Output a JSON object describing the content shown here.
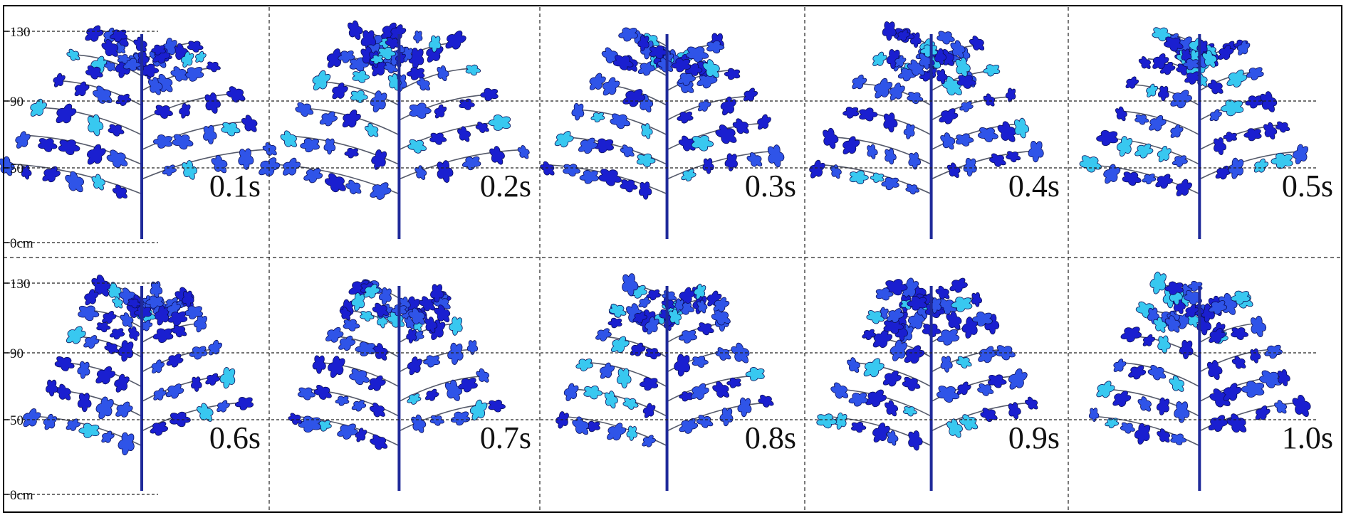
{
  "figure": {
    "rows": [
      {
        "axis_ticks": [
          "130",
          "90",
          "50",
          "0cm"
        ],
        "panels": [
          {
            "time_label": "0.1s",
            "spread": 1.2,
            "droop": 0.85
          },
          {
            "time_label": "0.2s",
            "spread": 1.15,
            "droop": 0.8
          },
          {
            "time_label": "0.3s",
            "spread": 1.05,
            "droop": 0.7
          },
          {
            "time_label": "0.4s",
            "spread": 1.0,
            "droop": 0.6
          },
          {
            "time_label": "0.5s",
            "spread": 0.95,
            "droop": 0.55
          }
        ]
      },
      {
        "axis_ticks": [
          "130",
          "90",
          "50",
          "0cm"
        ],
        "panels": [
          {
            "time_label": "0.6s",
            "spread": 0.95,
            "droop": 0.5
          },
          {
            "time_label": "0.7s",
            "spread": 0.95,
            "droop": 0.5
          },
          {
            "time_label": "0.8s",
            "spread": 0.95,
            "droop": 0.5
          },
          {
            "time_label": "0.9s",
            "spread": 0.95,
            "droop": 0.5
          },
          {
            "time_label": "1.0s",
            "spread": 0.95,
            "droop": 0.5
          }
        ]
      }
    ],
    "colors": {
      "stem": "#1f2a9a",
      "branch": "#555a6a",
      "leaf_dark": "#1a1fd0",
      "leaf_mid": "#2f54e8",
      "leaf_light": "#38c8f0",
      "leaf_outline": "#0b0f5a",
      "grid_line": "#222222"
    }
  }
}
